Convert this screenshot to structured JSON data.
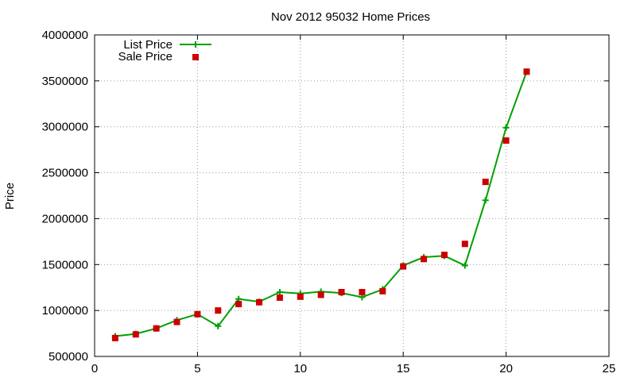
{
  "chart_data": {
    "type": "line",
    "title": "Nov 2012 95032 Home Prices",
    "xlabel": "",
    "ylabel": "Price",
    "xlim": [
      0,
      25
    ],
    "ylim": [
      500000,
      4000000
    ],
    "xticks": [
      0,
      5,
      10,
      15,
      20,
      25
    ],
    "yticks": [
      500000,
      1000000,
      1500000,
      2000000,
      2500000,
      3000000,
      3500000,
      4000000
    ],
    "grid": true,
    "legend_position": "top-left",
    "series": [
      {
        "name": "List Price",
        "style": "line-with-plus-markers",
        "color": "#00a000",
        "x": [
          1,
          2,
          3,
          4,
          5,
          6,
          7,
          8,
          9,
          10,
          11,
          12,
          13,
          14,
          15,
          16,
          17,
          18,
          19,
          20,
          21
        ],
        "values": [
          720000,
          745000,
          805000,
          895000,
          960000,
          830000,
          1125000,
          1095000,
          1200000,
          1185000,
          1205000,
          1190000,
          1145000,
          1230000,
          1490000,
          1580000,
          1595000,
          1490000,
          2200000,
          2990000,
          3600000
        ]
      },
      {
        "name": "Sale Price",
        "style": "square-markers",
        "color": "#cc0000",
        "x": [
          1,
          2,
          3,
          4,
          5,
          6,
          7,
          8,
          9,
          10,
          11,
          12,
          13,
          14,
          15,
          16,
          17,
          18,
          19,
          20,
          21
        ],
        "values": [
          700000,
          740000,
          805000,
          875000,
          960000,
          1000000,
          1070000,
          1090000,
          1140000,
          1150000,
          1170000,
          1200000,
          1200000,
          1210000,
          1480000,
          1560000,
          1605000,
          1725000,
          2400000,
          2850000,
          3600000
        ]
      }
    ]
  }
}
